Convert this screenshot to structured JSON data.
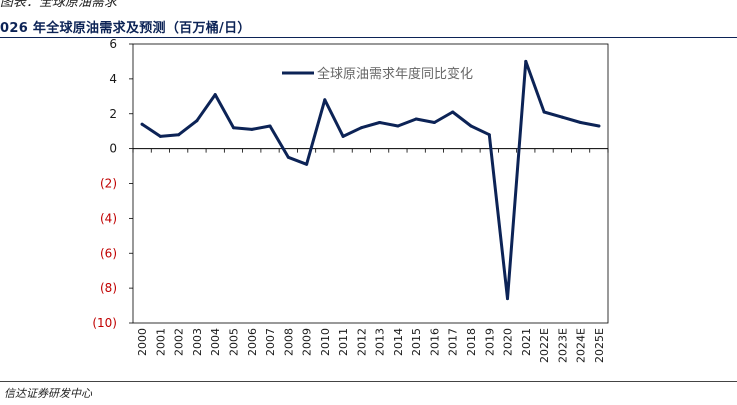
{
  "header": {
    "top_cut_text": "图表：全球原油需求",
    "title": "026 年全球原油需求及预测（百万桶/日）"
  },
  "footer": {
    "source": "信达证券研发中心"
  },
  "colors": {
    "series_line": "#0c2356",
    "title": "#0c2356",
    "negative_tick": "#c00000",
    "axis": "#000000"
  },
  "chart_data": {
    "type": "line",
    "title": "",
    "xlabel": "",
    "ylabel": "",
    "ylim": [
      -10,
      6
    ],
    "yticks": [
      6,
      4,
      2,
      0,
      -2,
      -4,
      -6,
      -8,
      -10
    ],
    "ytick_labels": [
      "6",
      "4",
      "2",
      "0",
      "(2)",
      "(4)",
      "(6)",
      "(8)",
      "(10)"
    ],
    "negative_format": "parentheses_red",
    "legend_position": "top-center",
    "grid": false,
    "categories": [
      "2000",
      "2001",
      "2002",
      "2003",
      "2004",
      "2005",
      "2006",
      "2007",
      "2008",
      "2009",
      "2010",
      "2011",
      "2012",
      "2013",
      "2014",
      "2015",
      "2016",
      "2017",
      "2018",
      "2019",
      "2020",
      "2021",
      "2022E",
      "2023E",
      "2024E",
      "2025E"
    ],
    "series": [
      {
        "name": "全球原油需求年度同比变化",
        "values": [
          1.4,
          0.7,
          0.8,
          1.6,
          3.1,
          1.2,
          1.1,
          1.3,
          -0.5,
          -0.9,
          2.8,
          0.7,
          1.2,
          1.5,
          1.3,
          1.7,
          1.5,
          2.1,
          1.3,
          0.8,
          -8.6,
          5.0,
          2.1,
          1.8,
          1.5,
          1.3
        ]
      }
    ]
  }
}
